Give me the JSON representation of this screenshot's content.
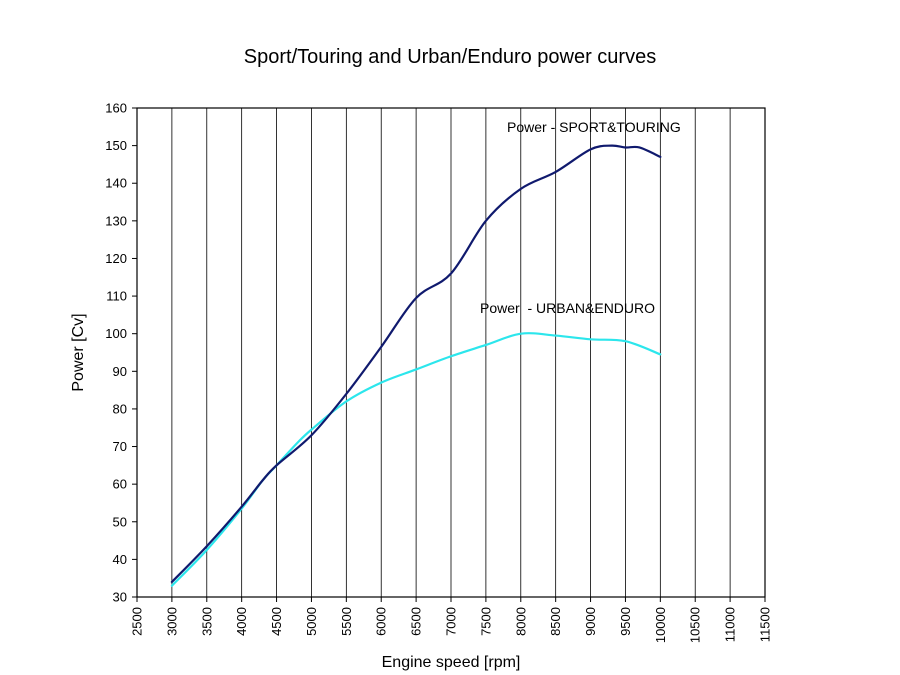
{
  "chart_data": {
    "type": "line",
    "title": "Sport/Touring and Urban/Enduro power curves",
    "xlabel": "Engine speed [rpm]",
    "ylabel": "Power [Cv]",
    "xlim": [
      2500,
      11500
    ],
    "ylim": [
      30,
      160
    ],
    "xticks": [
      2500,
      3000,
      3500,
      4000,
      4500,
      5000,
      5500,
      6000,
      6500,
      7000,
      7500,
      8000,
      8500,
      9000,
      9500,
      10000,
      10500,
      11000,
      11500
    ],
    "yticks": [
      30,
      40,
      50,
      60,
      70,
      80,
      90,
      100,
      110,
      120,
      130,
      140,
      150,
      160
    ],
    "grid": "vertical",
    "series": [
      {
        "name": "Power - SPORT&TOURING",
        "color": "#101a6e",
        "x": [
          3000,
          3500,
          4000,
          4300,
          4500,
          5000,
          5500,
          6000,
          6500,
          7000,
          7500,
          8000,
          8500,
          9000,
          9300,
          9500,
          9700,
          10000
        ],
        "y": [
          34,
          43.5,
          54,
          61,
          65,
          73,
          84,
          96.5,
          109.5,
          116,
          130,
          138.5,
          143,
          149,
          150,
          149.5,
          149.5,
          147
        ]
      },
      {
        "name": "Power  - URBAN&ENDURO",
        "color": "#2ce6ec",
        "x": [
          3000,
          3500,
          4000,
          4300,
          4500,
          4800,
          5000,
          5500,
          6000,
          6500,
          7000,
          7500,
          8000,
          8500,
          9000,
          9500,
          10000
        ],
        "y": [
          33,
          42.5,
          53.5,
          61,
          65,
          71,
          74.5,
          82,
          87,
          90.5,
          94,
          97,
          100,
          99.5,
          98.5,
          98,
          94.5
        ]
      }
    ]
  }
}
